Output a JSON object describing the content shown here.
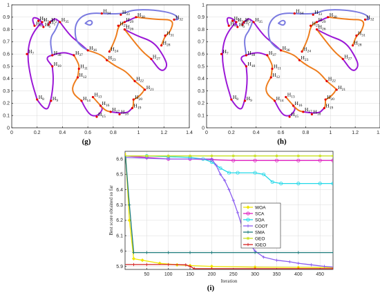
{
  "panels": {
    "g": {
      "caption": "(g)"
    },
    "h": {
      "caption": "(h)"
    },
    "i": {
      "caption": "(i)"
    }
  },
  "chart_data": [
    {
      "id": "g",
      "type": "scatter",
      "xlim": [
        0,
        1.4
      ],
      "ylim": [
        0,
        1
      ],
      "xticks": [
        0,
        0.2,
        0.4,
        0.6,
        0.8,
        1,
        1.2,
        1.4
      ],
      "yticks": [
        0,
        0.1,
        0.2,
        0.3,
        0.4,
        0.5,
        0.6,
        0.7,
        0.8,
        0.9,
        1
      ],
      "grid": true,
      "colors": {
        "curve_a": "#9b17d6",
        "curve_b": "#ee7d1d",
        "curve_c": "#7a7ae0",
        "points": "#e60000"
      },
      "points": [
        {
          "id": "1",
          "sub": "1",
          "x": 0.29,
          "y": 0.84
        },
        {
          "id": "2",
          "sub": "2",
          "x": 0.3,
          "y": 0.86
        },
        {
          "id": "3",
          "sub": "3",
          "x": 0.21,
          "y": 0.87
        },
        {
          "id": "4",
          "sub": "4",
          "x": 0.18,
          "y": 0.83
        },
        {
          "id": "5",
          "sub": "5",
          "x": 0.24,
          "y": 0.86
        },
        {
          "id": "6",
          "sub": "6",
          "x": 0.25,
          "y": 0.82
        },
        {
          "id": "7",
          "sub": "7",
          "x": 0.12,
          "y": 0.6
        },
        {
          "id": "8",
          "sub": "8",
          "x": 0.2,
          "y": 0.23
        },
        {
          "id": "9",
          "sub": "9",
          "x": 0.31,
          "y": 0.22
        },
        {
          "id": "10",
          "sub": "10",
          "x": 0.32,
          "y": 0.5
        },
        {
          "id": "11",
          "sub": "11",
          "x": 0.53,
          "y": 0.48
        },
        {
          "id": "12",
          "sub": "12",
          "x": 0.52,
          "y": 0.41
        },
        {
          "id": "13",
          "sub": "13",
          "x": 0.64,
          "y": 0.25
        },
        {
          "id": "14",
          "sub": "14",
          "x": 0.55,
          "y": 0.22
        },
        {
          "id": "15",
          "sub": "15",
          "x": 0.67,
          "y": 0.09
        },
        {
          "id": "16",
          "sub": "16",
          "x": 0.7,
          "y": 0.18
        },
        {
          "id": "17",
          "sub": "17",
          "x": 0.78,
          "y": 0.13
        },
        {
          "id": "18",
          "sub": "18",
          "x": 0.85,
          "y": 0.11
        },
        {
          "id": "19",
          "sub": "19",
          "x": 0.95,
          "y": 0.16
        },
        {
          "id": "20",
          "sub": "20",
          "x": 0.96,
          "y": 0.23
        },
        {
          "id": "21",
          "sub": "21",
          "x": 1.05,
          "y": 0.31
        },
        {
          "id": "22",
          "sub": "22",
          "x": 0.97,
          "y": 0.38
        },
        {
          "id": "23",
          "sub": "23",
          "x": 0.75,
          "y": 0.55
        },
        {
          "id": "24",
          "sub": "24",
          "x": 0.77,
          "y": 0.62
        },
        {
          "id": "25",
          "sub": "25",
          "x": 0.84,
          "y": 0.83
        },
        {
          "id": "26",
          "sub": "26",
          "x": 0.89,
          "y": 0.8
        },
        {
          "id": "27",
          "sub": "27",
          "x": 1.1,
          "y": 0.56
        },
        {
          "id": "28",
          "sub": "28",
          "x": 1.18,
          "y": 0.67
        },
        {
          "id": "29",
          "sub": "29",
          "x": 0.89,
          "y": 0.86
        },
        {
          "id": "30",
          "sub": "30",
          "x": 0.98,
          "y": 0.9
        },
        {
          "id": "31",
          "sub": "31",
          "x": 1.21,
          "y": 0.75
        },
        {
          "id": "32",
          "sub": "32",
          "x": 1.28,
          "y": 0.88
        },
        {
          "id": "33",
          "sub": "33",
          "x": 0.86,
          "y": 0.92
        },
        {
          "id": "34",
          "sub": "34",
          "x": 0.71,
          "y": 0.93
        },
        {
          "id": "35",
          "sub": "35",
          "x": 0.38,
          "y": 0.86
        },
        {
          "id": "36",
          "sub": "36",
          "x": 0.6,
          "y": 0.63
        },
        {
          "id": "37",
          "sub": "37",
          "x": 0.49,
          "y": 0.59
        },
        {
          "id": "38",
          "sub": "38",
          "x": 0.32,
          "y": 0.59
        }
      ]
    },
    {
      "id": "h",
      "type": "scatter",
      "xlim": [
        0,
        1.4
      ],
      "ylim": [
        0,
        1
      ],
      "xticks": [
        0,
        0.2,
        0.4,
        0.6,
        0.8,
        1,
        1.2,
        1.4
      ],
      "yticks": [
        0,
        0.1,
        0.2,
        0.3,
        0.4,
        0.5,
        0.6,
        0.7,
        0.8,
        0.9,
        1
      ],
      "grid": true
    },
    {
      "id": "i",
      "type": "line",
      "xlabel": "Iteration",
      "ylabel": "Best score obtained so far",
      "xlim": [
        0,
        480
      ],
      "ylim": [
        5.88,
        6.65
      ],
      "xticks": [
        50,
        100,
        150,
        200,
        250,
        300,
        350,
        400,
        450
      ],
      "yticks": [
        5.9,
        6,
        6.1,
        6.2,
        6.3,
        6.4,
        6.5,
        6.6
      ],
      "ytick_labels": [
        "5.9",
        "6",
        "6.1",
        "6.2",
        "6.3",
        "6.4",
        "6.5",
        "6.6"
      ],
      "grid": true,
      "legend_position": "right",
      "series": [
        {
          "name": "WOA",
          "color": "#f0e600",
          "marker": "diamond",
          "x": [
            1,
            10,
            20,
            40,
            80,
            120,
            150,
            200,
            300,
            400,
            480
          ],
          "y": [
            6.64,
            6.2,
            5.95,
            5.94,
            5.92,
            5.91,
            5.905,
            5.9,
            5.895,
            5.893,
            5.892
          ]
        },
        {
          "name": "SCA",
          "color": "#e020c0",
          "marker": "circle",
          "x": [
            1,
            50,
            100,
            150,
            200,
            250,
            300,
            350,
            400,
            450,
            480
          ],
          "y": [
            6.62,
            6.61,
            6.6,
            6.6,
            6.595,
            6.59,
            6.59,
            6.59,
            6.59,
            6.59,
            6.59
          ]
        },
        {
          "name": "SOA",
          "color": "#20d8e8",
          "marker": "circle",
          "x": [
            1,
            50,
            100,
            150,
            180,
            200,
            220,
            240,
            260,
            300,
            320,
            340,
            360,
            400,
            450,
            480
          ],
          "y": [
            6.62,
            6.62,
            6.615,
            6.61,
            6.6,
            6.58,
            6.54,
            6.51,
            6.51,
            6.51,
            6.5,
            6.45,
            6.44,
            6.44,
            6.44,
            6.44
          ]
        },
        {
          "name": "COOT",
          "color": "#8a5cf0",
          "marker": "plus",
          "x": [
            1,
            50,
            100,
            150,
            200,
            210,
            220,
            230,
            240,
            250,
            260,
            270,
            280,
            290,
            300,
            320,
            350,
            380,
            400,
            430,
            460,
            480
          ],
          "y": [
            6.61,
            6.605,
            6.6,
            6.6,
            6.6,
            6.56,
            6.5,
            6.46,
            6.4,
            6.33,
            6.25,
            6.16,
            6.09,
            6.04,
            6.0,
            5.96,
            5.94,
            5.93,
            5.92,
            5.91,
            5.9,
            5.895
          ]
        },
        {
          "name": "SMA",
          "color": "#1a7a7a",
          "marker": "plus",
          "x": [
            1,
            10,
            20,
            50,
            100,
            150,
            200,
            300,
            400,
            480
          ],
          "y": [
            6.62,
            6.3,
            5.99,
            5.99,
            5.99,
            5.99,
            5.99,
            5.99,
            5.99,
            5.99
          ]
        },
        {
          "name": "GEO",
          "color": "#c8e020",
          "marker": "star",
          "x": [
            1,
            50,
            100,
            150,
            200,
            250,
            300,
            350,
            400,
            450,
            480
          ],
          "y": [
            6.62,
            6.62,
            6.62,
            6.62,
            6.62,
            6.62,
            6.62,
            6.62,
            6.62,
            6.62,
            6.62
          ]
        },
        {
          "name": "IGEO",
          "color": "#d42020",
          "marker": "plus",
          "x": [
            1,
            20,
            50,
            100,
            140,
            150,
            160,
            200,
            300,
            400,
            480
          ],
          "y": [
            5.912,
            5.912,
            5.912,
            5.912,
            5.91,
            5.9,
            5.885,
            5.885,
            5.885,
            5.885,
            5.885
          ]
        }
      ]
    }
  ]
}
